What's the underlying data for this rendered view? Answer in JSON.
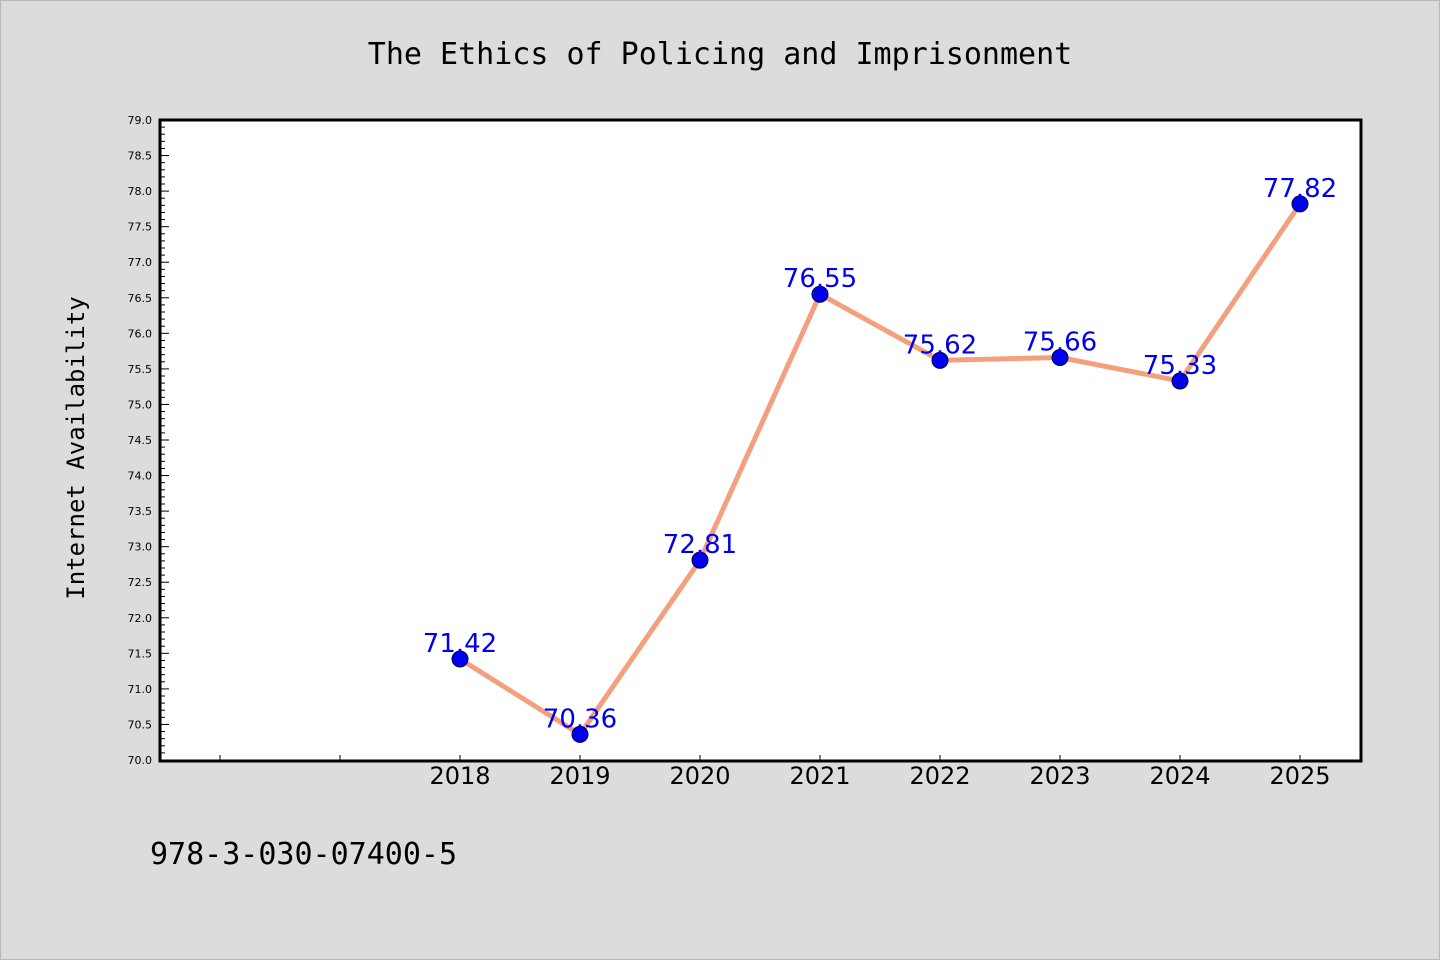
{
  "chart_data": {
    "type": "line",
    "title": "The Ethics of Policing and Imprisonment",
    "xlabel": "",
    "ylabel": "Internet Availability",
    "categories": [
      "2018",
      "2019",
      "2020",
      "2021",
      "2022",
      "2023",
      "2024",
      "2025"
    ],
    "series": [
      {
        "values": [
          71.42,
          70.36,
          72.81,
          76.55,
          75.62,
          75.66,
          75.33,
          77.82
        ]
      }
    ],
    "data_labels": [
      "71.42",
      "70.36",
      "72.81",
      "76.55",
      "75.62",
      "75.66",
      "75.33",
      "77.82"
    ],
    "ylim": [
      70.0,
      79.0
    ],
    "yticks": [
      "70.0",
      "70.5",
      "71.0",
      "71.5",
      "72.0",
      "72.5",
      "73.0",
      "73.5",
      "74.0",
      "74.5",
      "75.0",
      "75.5",
      "76.0",
      "76.5",
      "77.0",
      "77.5",
      "78.0",
      "78.5",
      "79.0"
    ],
    "grid": false,
    "legend": "none",
    "colors": {
      "line": "#f4a07e",
      "marker": "#0000ee",
      "data_label": "#0000ee",
      "plot_background": "#ffffff",
      "page_background": "#dcdcdc"
    }
  },
  "footer": {
    "isbn": "978-3-030-07400-5"
  }
}
